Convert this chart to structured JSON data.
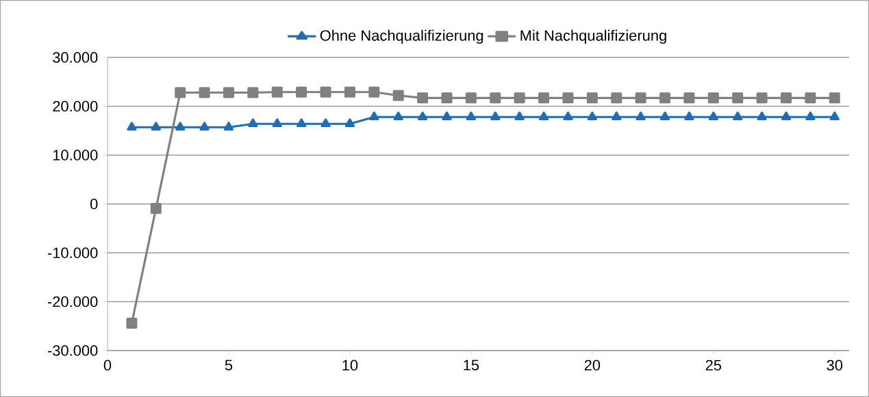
{
  "chart_data": {
    "type": "line",
    "x": [
      1,
      2,
      3,
      4,
      5,
      6,
      7,
      8,
      9,
      10,
      11,
      12,
      13,
      14,
      15,
      16,
      17,
      18,
      19,
      20,
      21,
      22,
      23,
      24,
      25,
      26,
      27,
      28,
      29,
      30
    ],
    "series": [
      {
        "name": "Ohne Nachqualifizierung",
        "color": "#1f6db5",
        "marker": "triangle",
        "values": [
          15700,
          15700,
          15700,
          15700,
          15700,
          16400,
          16400,
          16400,
          16400,
          16400,
          17800,
          17800,
          17800,
          17800,
          17800,
          17800,
          17800,
          17800,
          17800,
          17800,
          17800,
          17800,
          17800,
          17800,
          17800,
          17800,
          17800,
          17800,
          17800,
          17800
        ]
      },
      {
        "name": "Mit Nachqualifizierung",
        "color": "#808080",
        "marker": "square",
        "values": [
          -24400,
          -900,
          22800,
          22800,
          22800,
          22800,
          22900,
          22900,
          22900,
          22900,
          22900,
          22200,
          21700,
          21700,
          21700,
          21700,
          21700,
          21700,
          21700,
          21700,
          21700,
          21700,
          21700,
          21700,
          21700,
          21700,
          21700,
          21700,
          21700,
          21700
        ]
      }
    ],
    "xlim": [
      0,
      30.6
    ],
    "xticks": [
      0,
      5,
      10,
      15,
      20,
      25,
      30
    ],
    "ylim": [
      -30000,
      30000
    ],
    "yticks": [
      {
        "value": -30000,
        "label": "-30.000"
      },
      {
        "value": -20000,
        "label": "-20.000"
      },
      {
        "value": -10000,
        "label": "-10.000"
      },
      {
        "value": 0,
        "label": "0"
      },
      {
        "value": 10000,
        "label": "10.000"
      },
      {
        "value": 20000,
        "label": "20.000"
      },
      {
        "value": 30000,
        "label": "30.000"
      }
    ],
    "grid": "y",
    "legend": "top"
  }
}
